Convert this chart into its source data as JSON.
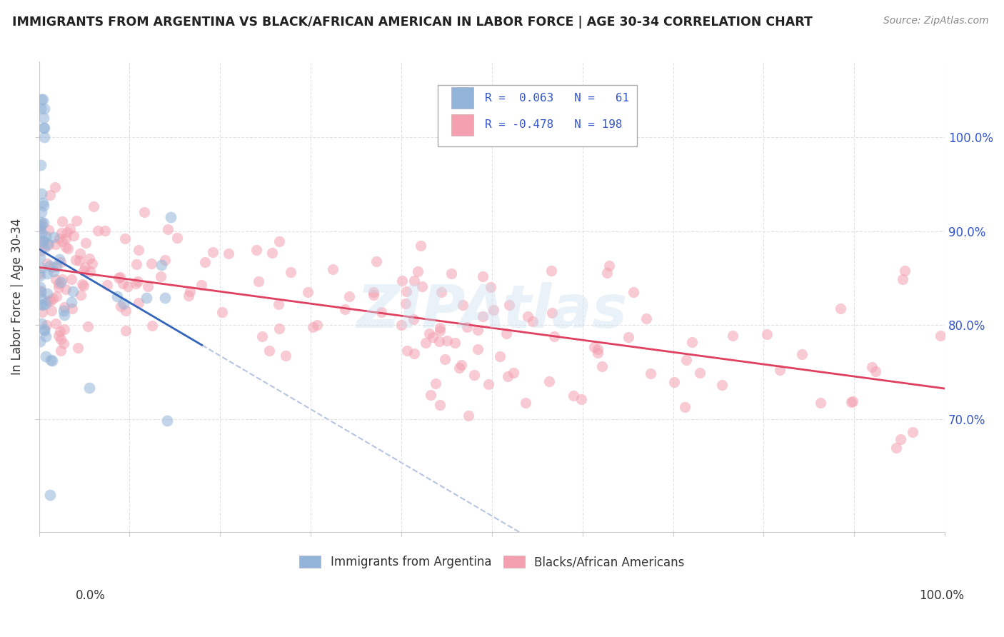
{
  "title": "IMMIGRANTS FROM ARGENTINA VS BLACK/AFRICAN AMERICAN IN LABOR FORCE | AGE 30-34 CORRELATION CHART",
  "source": "Source: ZipAtlas.com",
  "ylabel": "In Labor Force | Age 30-34",
  "legend_r1_val": "0.063",
  "legend_n1_val": "61",
  "legend_r2_val": "-0.478",
  "legend_n2_val": "198",
  "blue_color": "#92b4d8",
  "pink_color": "#f4a0b0",
  "trend_blue": "#3366bb",
  "trend_pink": "#e04060",
  "dashed_color": "#aabbdd",
  "xlim": [
    0.0,
    1.0
  ],
  "ylim": [
    0.58,
    1.08
  ],
  "yticks": [
    0.7,
    0.8,
    0.9,
    1.0
  ],
  "ytick_labels": [
    "70.0%",
    "80.0%",
    "90.0%",
    "100.0%"
  ],
  "xtick_left": "0.0%",
  "xtick_right": "100.0%",
  "watermark": "ZIPAtlas",
  "background_color": "#ffffff",
  "grid_color": "#dddddd",
  "legend_label_blue": "Immigrants from Argentina",
  "legend_label_pink": "Blacks/African Americans"
}
